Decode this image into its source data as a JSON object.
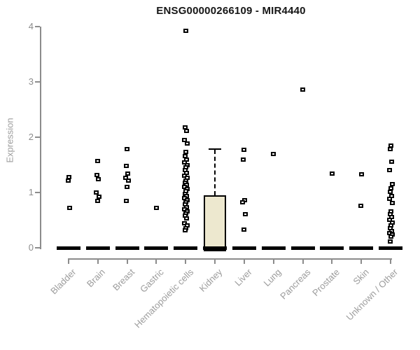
{
  "chart_data": {
    "type": "boxplot",
    "title": "ENSG00000266109 - MIR4440",
    "ylabel": "Expression",
    "xlabel": "",
    "ylim": [
      0,
      4
    ],
    "yticks": [
      "0",
      "1",
      "2",
      "3",
      "4"
    ],
    "grid": false,
    "legend": "none",
    "categories": [
      "Bladder",
      "Brain",
      "Breast",
      "Gastric",
      "Hematopoietic cells",
      "Kidney",
      "Liver",
      "Lung",
      "Pancreas",
      "Prostate",
      "Skin",
      "Unknown / Other"
    ],
    "series": [
      {
        "category": "Bladder",
        "median": 0,
        "points": [
          1.28,
          1.22,
          0.72
        ]
      },
      {
        "category": "Brain",
        "median": 0,
        "points": [
          1.57,
          1.32,
          1.24,
          1.0,
          0.92,
          0.85
        ]
      },
      {
        "category": "Breast",
        "median": 0,
        "points": [
          1.78,
          1.48,
          1.34,
          1.27,
          1.22,
          1.1,
          0.85
        ]
      },
      {
        "category": "Gastric",
        "median": 0,
        "points": [
          0.72
        ]
      },
      {
        "category": "Hematopoietic cells",
        "median": 0,
        "points": [
          3.93,
          2.18,
          2.12,
          1.95,
          1.88,
          1.74,
          1.66,
          1.6,
          1.55,
          1.5,
          1.45,
          1.4,
          1.35,
          1.3,
          1.26,
          1.22,
          1.18,
          1.14,
          1.1,
          1.06,
          1.02,
          0.98,
          0.94,
          0.9,
          0.86,
          0.82,
          0.78,
          0.74,
          0.7,
          0.66,
          0.62,
          0.58,
          0.53,
          0.44,
          0.4,
          0.36,
          0.32
        ]
      },
      {
        "category": "Kidney",
        "median": 0,
        "box": {
          "q1": 0,
          "q3": 0.94,
          "whisker_low": 0,
          "whisker_high": 1.78
        },
        "points": []
      },
      {
        "category": "Liver",
        "median": 0,
        "points": [
          1.77,
          1.59,
          0.86,
          0.82,
          0.61,
          0.33
        ]
      },
      {
        "category": "Lung",
        "median": 0,
        "points": [
          1.7
        ]
      },
      {
        "category": "Pancreas",
        "median": 0,
        "points": [
          2.86
        ]
      },
      {
        "category": "Prostate",
        "median": 0,
        "points": [
          1.34
        ]
      },
      {
        "category": "Skin",
        "median": 0,
        "points": [
          1.33,
          0.76
        ]
      },
      {
        "category": "Unknown / Other",
        "median": 0,
        "points": [
          1.85,
          1.78,
          1.56,
          1.41,
          1.15,
          1.08,
          1.01,
          0.94,
          0.88,
          0.81,
          0.66,
          0.61,
          0.56,
          0.51,
          0.46,
          0.41,
          0.36,
          0.31,
          0.27,
          0.24,
          0.2,
          0.12
        ]
      }
    ],
    "colors": {
      "box_fill": "#ede8cf",
      "axis_gray": "#8c8c8c",
      "label_gray": "#9c9c9c",
      "marker": "#000000",
      "title": "#161616"
    }
  }
}
